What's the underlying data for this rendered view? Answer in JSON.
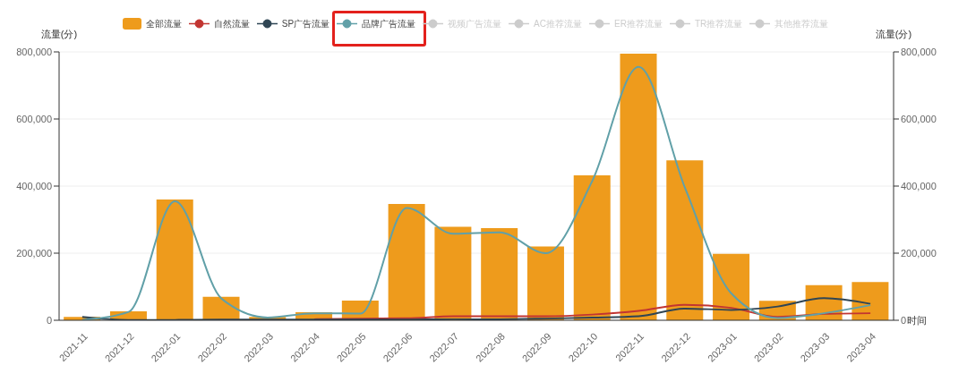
{
  "chart_data": {
    "type": "bar",
    "categories": [
      "2021-11",
      "2021-12",
      "2022-01",
      "2022-02",
      "2022-03",
      "2022-04",
      "2022-05",
      "2022-06",
      "2022-07",
      "2022-08",
      "2022-09",
      "2022-10",
      "2022-11",
      "2022-12",
      "2023-01",
      "2023-02",
      "2023-03",
      "2023-04"
    ],
    "xlabel": "时间",
    "ylabel": "流量(分)",
    "y2label": "流量(分)",
    "ylim": [
      0,
      800000
    ],
    "yticks": [
      0,
      {
        "value": 200000,
        "label": "200,000"
      },
      {
        "value": 400000,
        "label": "400,000"
      },
      {
        "value": 600000,
        "label": "600,000"
      },
      {
        "value": 800000,
        "label": "800,000"
      }
    ],
    "y2lim": [
      0,
      800000
    ],
    "y2ticks": [
      0,
      {
        "value": 200000,
        "label": "200,000"
      },
      {
        "value": 400000,
        "label": "400,000"
      },
      {
        "value": 600000,
        "label": "600,000"
      },
      {
        "value": 800000,
        "label": "800,000"
      }
    ],
    "grid": "y",
    "legend": "top",
    "marker": "none",
    "series": [
      {
        "name": "全部流量",
        "color": "#ee9b1c",
        "values": [
          10000,
          27000,
          360000,
          70000,
          10000,
          24000,
          59000,
          347000,
          279000,
          275000,
          220000,
          432000,
          795000,
          477000,
          198000,
          58000,
          105000,
          114000
        ]
      },
      {
        "name": "自然流量",
        "type": "line",
        "color": "#c23531",
        "values": [
          null,
          null,
          null,
          null,
          null,
          3000,
          5000,
          6000,
          12000,
          12000,
          12000,
          17000,
          28000,
          46000,
          37000,
          10000,
          19000,
          21000
        ]
      },
      {
        "name": "SP广告流量",
        "type": "line",
        "color": "#2f4554",
        "values": [
          10000,
          1000,
          1000,
          2000,
          2000,
          2000,
          2000,
          2000,
          3000,
          3000,
          5000,
          8000,
          12000,
          35000,
          31000,
          41000,
          66000,
          49000
        ]
      },
      {
        "name": "品牌广告流量",
        "type": "line",
        "color": "#61a0a8",
        "values": [
          1000,
          25000,
          355000,
          65000,
          8000,
          21000,
          20000,
          335000,
          258000,
          262000,
          200000,
          415000,
          755000,
          395000,
          80000,
          7000,
          21000,
          45000
        ]
      },
      {
        "name": "视频广告流量",
        "type": "line",
        "color": "#cccccc",
        "values": [
          null,
          null,
          null,
          null,
          null,
          null,
          null,
          null,
          null,
          null,
          null,
          null,
          null,
          null,
          null,
          null,
          null,
          null
        ]
      },
      {
        "name": "AC推荐流量",
        "type": "line",
        "color": "#cccccc",
        "values": [
          null,
          null,
          null,
          null,
          null,
          null,
          null,
          null,
          null,
          null,
          null,
          null,
          null,
          null,
          null,
          null,
          null,
          null
        ]
      },
      {
        "name": "ER推荐流量",
        "type": "line",
        "color": "#cccccc",
        "values": [
          null,
          null,
          null,
          null,
          null,
          null,
          null,
          null,
          null,
          null,
          null,
          null,
          null,
          null,
          null,
          null,
          null,
          null
        ]
      },
      {
        "name": "TR推荐流量",
        "type": "line",
        "color": "#cccccc",
        "values": [
          null,
          null,
          null,
          null,
          null,
          null,
          null,
          null,
          null,
          null,
          null,
          null,
          null,
          null,
          null,
          null,
          null,
          null
        ]
      },
      {
        "name": "其他推荐流量",
        "type": "line",
        "color": "#cccccc",
        "values": [
          null,
          null,
          null,
          null,
          null,
          null,
          null,
          null,
          null,
          null,
          null,
          null,
          null,
          null,
          null,
          null,
          null,
          null
        ]
      }
    ]
  }
}
